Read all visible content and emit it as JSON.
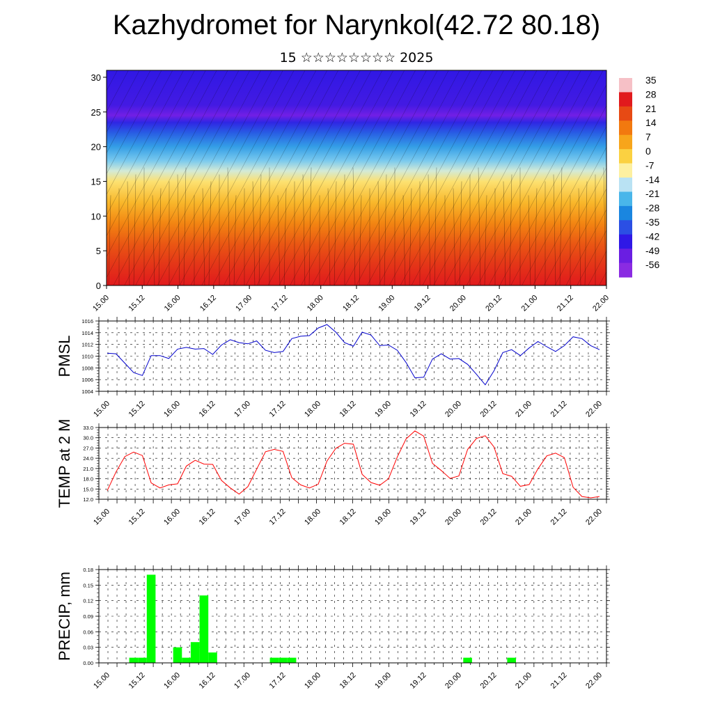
{
  "page": {
    "title": "Kazhydromet for Narynkol(42.72 80.18)",
    "subtitle": "15 ☆☆☆☆☆☆☆☆ 2025"
  },
  "chart_data": [
    {
      "type": "heatmap",
      "variable": "temperature with wind barbs",
      "y_ticks": [
        "0",
        "5",
        "10",
        "15",
        "20",
        "25",
        "30"
      ],
      "ylim": [
        0,
        31
      ],
      "x_ticks": [
        "15.00",
        "15.12",
        "16.00",
        "16.12",
        "17.00",
        "17.12",
        "18.00",
        "18.12",
        "19.00",
        "19.12",
        "20.00",
        "20.12",
        "21.00",
        "21.12",
        "22.00"
      ],
      "colorbar_labels": [
        "35",
        "28",
        "21",
        "14",
        "7",
        "0",
        "-7",
        "-14",
        "-21",
        "-28",
        "-35",
        "-42",
        "-49",
        "-56"
      ],
      "colorbar_colors": [
        "#f6c0c6",
        "#e11a1d",
        "#e74a14",
        "#f2790f",
        "#f7a51b",
        "#fbd141",
        "#fdf0a0",
        "#b9e2f3",
        "#49b6ea",
        "#1a86e0",
        "#2b4fe4",
        "#2f18e6",
        "#6a1ee2",
        "#8a2be2"
      ],
      "profile": {
        "heights": [
          0,
          3,
          6,
          9,
          12,
          15,
          16.5,
          18,
          20,
          22,
          23.5,
          24.5,
          26,
          31
        ],
        "values": [
          28,
          24,
          19,
          12,
          4,
          -3,
          -14,
          -22,
          -30,
          -40,
          -48,
          -58,
          -52,
          -50
        ]
      }
    },
    {
      "type": "line",
      "ylabel": "PMSL",
      "color": "#0000cc",
      "ylim": [
        1004,
        1016
      ],
      "y_ticks": [
        "1004",
        "1006",
        "1008",
        "1010",
        "1012",
        "1014",
        "1016"
      ],
      "x_ticks": [
        "15.00",
        "15.12",
        "16.00",
        "16.12",
        "17.00",
        "17.12",
        "18.00",
        "18.12",
        "19.00",
        "19.12",
        "20.00",
        "20.12",
        "21.00",
        "21.12",
        "22.00"
      ],
      "x_step_hours": 3,
      "values": [
        1010.5,
        1010.4,
        1008.8,
        1007.2,
        1006.7,
        1010.1,
        1010.1,
        1009.6,
        1011.2,
        1011.5,
        1011.2,
        1011.3,
        1010.3,
        1011.9,
        1012.8,
        1012.3,
        1012.1,
        1012.6,
        1011.0,
        1010.6,
        1010.8,
        1013.0,
        1013.4,
        1013.5,
        1014.8,
        1015.4,
        1014.1,
        1012.3,
        1011.7,
        1014.1,
        1013.6,
        1011.8,
        1011.9,
        1011.0,
        1008.9,
        1006.3,
        1006.4,
        1009.5,
        1010.4,
        1009.5,
        1009.6,
        1008.6,
        1006.9,
        1005.1,
        1007.5,
        1010.6,
        1011.1,
        1010.1,
        1011.4,
        1012.5,
        1011.6,
        1010.8,
        1011.8,
        1013.3,
        1013.0,
        1011.8,
        1011.1
      ]
    },
    {
      "type": "line",
      "ylabel": "TEMP at 2 M",
      "color": "#ff0000",
      "ylim": [
        12.0,
        33.0
      ],
      "y_ticks": [
        "12.0",
        "15.0",
        "18.0",
        "21.0",
        "24.0",
        "27.0",
        "30.0",
        "33.0"
      ],
      "x_ticks": [
        "15.00",
        "15.12",
        "16.00",
        "16.12",
        "17.00",
        "17.12",
        "18.00",
        "18.12",
        "19.00",
        "19.12",
        "20.00",
        "20.12",
        "21.00",
        "21.12",
        "22.00"
      ],
      "x_step_hours": 3,
      "values": [
        14.5,
        20.0,
        24.5,
        25.8,
        24.8,
        16.8,
        15.3,
        16.2,
        16.5,
        21.7,
        23.4,
        22.3,
        22.2,
        17.5,
        15.3,
        13.5,
        15.7,
        20.8,
        25.9,
        26.6,
        26.0,
        18.3,
        16.2,
        15.3,
        16.4,
        23.2,
        26.9,
        28.4,
        28.1,
        19.3,
        16.9,
        16.1,
        18.0,
        24.4,
        29.7,
        32.0,
        30.5,
        22.5,
        20.4,
        18.1,
        18.8,
        26.6,
        29.8,
        30.6,
        27.3,
        19.5,
        18.7,
        15.8,
        16.3,
        20.9,
        24.7,
        25.5,
        24.2,
        15.5,
        12.8,
        12.4,
        12.8
      ]
    },
    {
      "type": "bar",
      "ylabel": "PRECIP, mm",
      "color": "#00ff00",
      "ylim": [
        0,
        0.18
      ],
      "y_ticks": [
        "0.00",
        "0.03",
        "0.06",
        "0.09",
        "0.12",
        "0.15",
        "0.18"
      ],
      "x_ticks": [
        "15.00",
        "15.12",
        "16.00",
        "16.12",
        "17.00",
        "17.12",
        "18.00",
        "18.12",
        "19.00",
        "19.12",
        "20.00",
        "20.12",
        "21.00",
        "21.12",
        "22.00"
      ],
      "x_step_hours": 3,
      "values": [
        0,
        0,
        0,
        0.01,
        0.01,
        0.17,
        0,
        0,
        0.03,
        0.01,
        0.04,
        0.13,
        0.02,
        0,
        0,
        0,
        0,
        0,
        0,
        0.01,
        0.01,
        0.01,
        0,
        0,
        0,
        0,
        0,
        0,
        0,
        0,
        0,
        0,
        0,
        0,
        0,
        0,
        0,
        0,
        0,
        0,
        0,
        0.01,
        0,
        0,
        0,
        0,
        0.01,
        0,
        0,
        0,
        0,
        0,
        0,
        0,
        0,
        0,
        0
      ]
    }
  ]
}
